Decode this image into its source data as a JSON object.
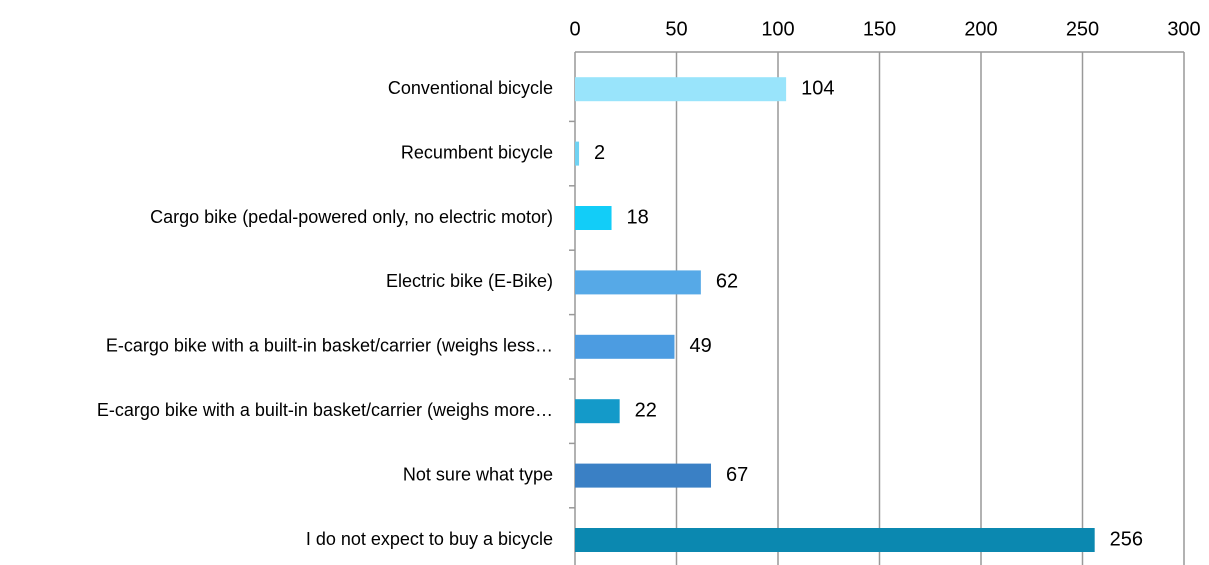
{
  "chart_data": {
    "type": "barh",
    "categories": [
      "Conventional bicycle",
      "Recumbent bicycle",
      "Cargo bike (pedal-powered only, no electric motor)",
      "Electric bike (E-Bike)",
      "E-cargo bike with a built-in basket/carrier (weighs less…",
      "E-cargo bike with a built-in basket/carrier (weighs more…",
      "Not sure what type",
      "I do not expect to buy a bicycle"
    ],
    "values": [
      104,
      2,
      18,
      62,
      49,
      22,
      67,
      256
    ],
    "colors": [
      "#99e4fb",
      "#6fd2f2",
      "#12cdf8",
      "#56a9e7",
      "#4c9ce1",
      "#149ac9",
      "#3a80c5",
      "#0b88b0"
    ],
    "xlim": [
      0,
      300
    ],
    "xticks": [
      0,
      50,
      100,
      150,
      200,
      250,
      300
    ],
    "grid": true
  }
}
